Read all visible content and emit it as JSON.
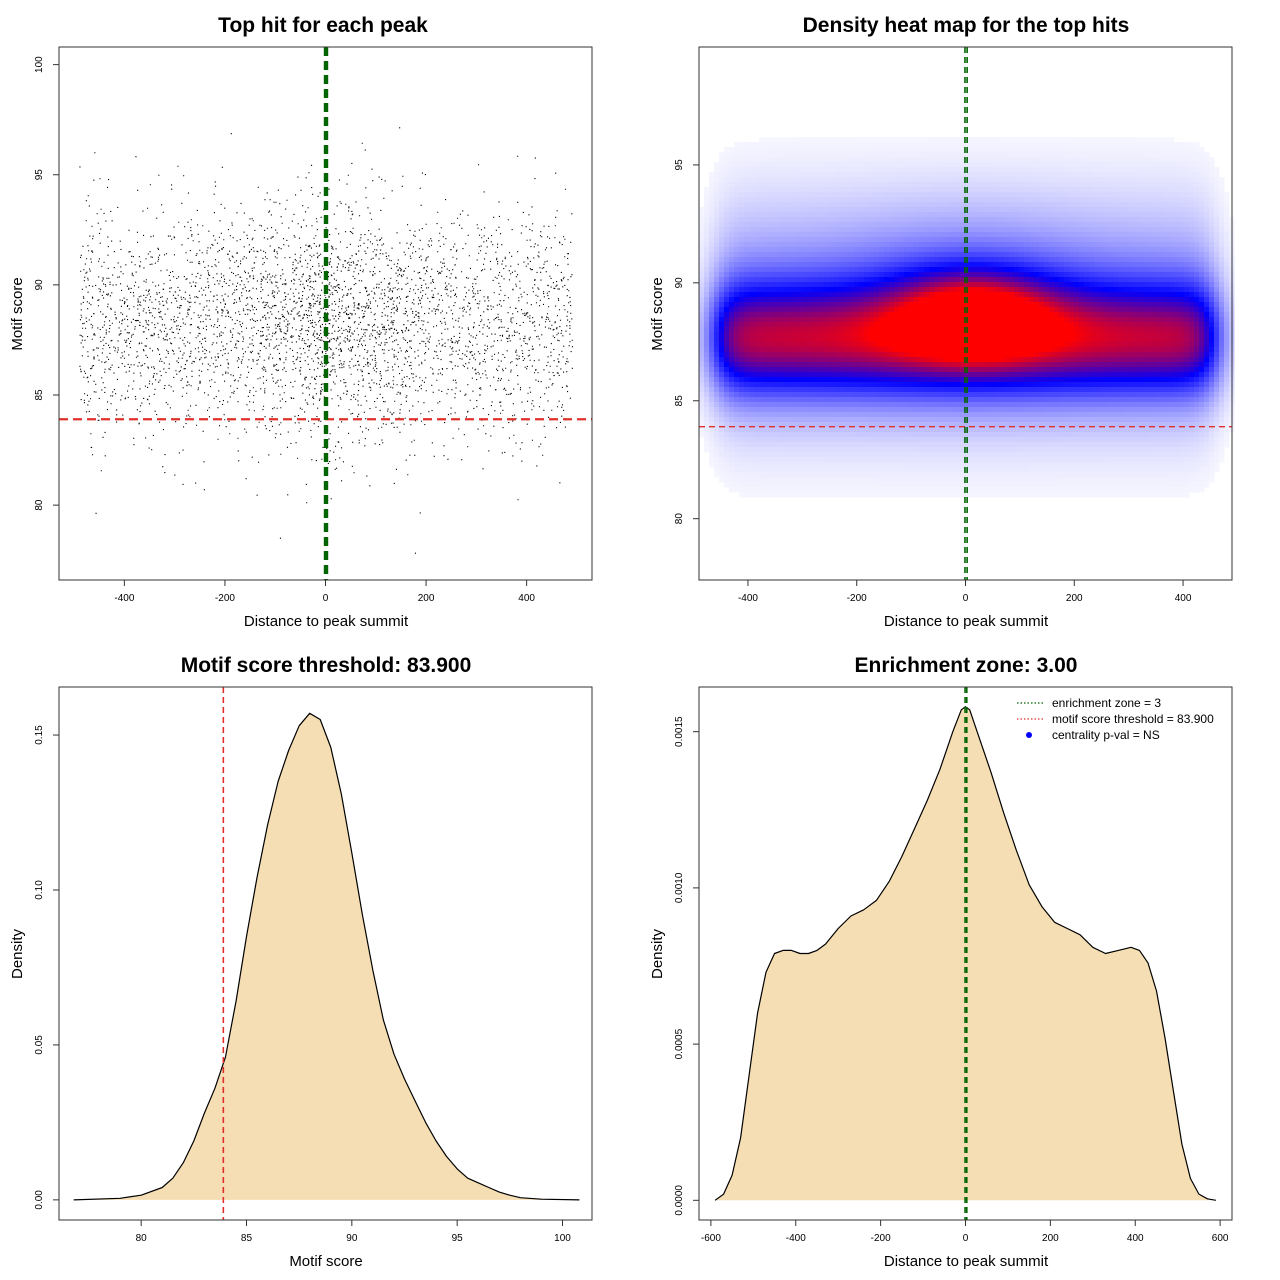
{
  "colors": {
    "fill": "#f5deb3",
    "threshold_line": "#e0302c",
    "zone_line": "#006400",
    "point": "#000000",
    "heat_low": "#ffffff",
    "heat_mid": "#0000ff",
    "heat_high": "#ff0000",
    "legend_dot": "#0000ff"
  },
  "chart_data": [
    {
      "type": "scatter",
      "title": "Top hit for each peak",
      "xlabel": "Distance to peak summit",
      "ylabel": "Motif score",
      "xlim": [
        -530,
        530
      ],
      "ylim": [
        76.6,
        100.8
      ],
      "xticks": [
        -400,
        -200,
        0,
        200,
        400
      ],
      "yticks": [
        80,
        85,
        90,
        95,
        100
      ],
      "x_range": [
        -490,
        490
      ],
      "y_center": 88.3,
      "y_sd": 2.6,
      "center_enrichment": true,
      "hlines": [
        {
          "y": 83.9,
          "role": "threshold"
        }
      ],
      "vlines": [
        {
          "x": -1,
          "role": "zone"
        },
        {
          "x": 3,
          "role": "zone"
        }
      ]
    },
    {
      "type": "heatmap",
      "title": "Density heat map for the top hits",
      "xlabel": "Distance to peak summit",
      "ylabel": "Motif score",
      "xlim": [
        -490,
        490
      ],
      "ylim": [
        77.4,
        100.0
      ],
      "xticks": [
        -400,
        -200,
        0,
        200,
        400
      ],
      "yticks": [
        80,
        85,
        90,
        95
      ],
      "peak": {
        "x": 15,
        "y": 88.6
      },
      "band_y": 87.6,
      "hlines": [
        {
          "y": 83.9,
          "role": "threshold"
        }
      ],
      "vlines": [
        {
          "x": -1,
          "role": "zone"
        },
        {
          "x": 3,
          "role": "zone"
        }
      ]
    },
    {
      "type": "area",
      "title": "Motif score threshold: 83.900",
      "xlabel": "Motif score",
      "ylabel": "Density",
      "xlim": [
        76.1,
        101.4
      ],
      "ylim": [
        -0.0065,
        0.1655
      ],
      "xticks": [
        80,
        85,
        90,
        95,
        100
      ],
      "yticks": [
        0.0,
        0.05,
        0.1,
        0.15
      ],
      "ytick_labels": [
        "0.00",
        "0.05",
        "0.10",
        "0.15"
      ],
      "x": [
        76.8,
        79,
        80,
        81,
        81.5,
        82,
        82.5,
        83,
        83.5,
        84,
        84.5,
        85,
        85.5,
        86,
        86.5,
        87,
        87.5,
        88,
        88.5,
        89,
        89.5,
        90,
        90.5,
        91,
        91.5,
        92,
        92.5,
        93,
        93.5,
        94,
        94.5,
        95,
        95.5,
        96,
        96.5,
        97,
        97.5,
        98,
        99,
        100.8
      ],
      "y": [
        0,
        0.0005,
        0.0015,
        0.004,
        0.007,
        0.012,
        0.019,
        0.028,
        0.036,
        0.046,
        0.064,
        0.085,
        0.104,
        0.121,
        0.135,
        0.145,
        0.153,
        0.157,
        0.155,
        0.146,
        0.131,
        0.112,
        0.092,
        0.074,
        0.058,
        0.047,
        0.039,
        0.032,
        0.025,
        0.019,
        0.014,
        0.01,
        0.007,
        0.0055,
        0.004,
        0.0025,
        0.0015,
        0.0007,
        0.0002,
        0
      ],
      "vlines": [
        {
          "x": 83.9,
          "role": "threshold"
        }
      ]
    },
    {
      "type": "area",
      "title": "Enrichment zone: 3.00",
      "xlabel": "Distance to peak summit",
      "ylabel": "Density",
      "xlim": [
        -628,
        628
      ],
      "ylim": [
        -6.3e-05,
        0.001643
      ],
      "xticks": [
        -600,
        -400,
        -200,
        0,
        200,
        400,
        600
      ],
      "yticks": [
        0.0,
        0.0005,
        0.001,
        0.0015
      ],
      "ytick_labels": [
        "0.0000",
        "0.0005",
        "0.0010",
        "0.0015"
      ],
      "x": [
        -590,
        -570,
        -550,
        -530,
        -510,
        -490,
        -470,
        -450,
        -430,
        -410,
        -390,
        -370,
        -350,
        -330,
        -300,
        -270,
        -240,
        -210,
        -180,
        -150,
        -120,
        -90,
        -60,
        -30,
        -10,
        0,
        10,
        30,
        60,
        90,
        120,
        150,
        180,
        210,
        240,
        270,
        300,
        330,
        360,
        390,
        410,
        430,
        450,
        470,
        490,
        510,
        530,
        550,
        570,
        590
      ],
      "y": [
        0,
        2e-05,
        8e-05,
        0.0002,
        0.0004,
        0.0006,
        0.00073,
        0.00079,
        0.0008,
        0.0008,
        0.00079,
        0.00079,
        0.0008,
        0.00082,
        0.00087,
        0.00091,
        0.00093,
        0.00096,
        0.00102,
        0.0011,
        0.00119,
        0.00128,
        0.00138,
        0.0015,
        0.00157,
        0.00158,
        0.00157,
        0.00149,
        0.00137,
        0.00124,
        0.00112,
        0.00101,
        0.00094,
        0.00089,
        0.00087,
        0.00085,
        0.00081,
        0.00079,
        0.0008,
        0.00081,
        0.0008,
        0.00076,
        0.00067,
        0.00052,
        0.00035,
        0.00018,
        7e-05,
        2e-05,
        5e-06,
        0
      ],
      "vlines": [
        {
          "x": -1,
          "role": "zone"
        },
        {
          "x": 3,
          "role": "zone"
        }
      ],
      "legend": {
        "position": "top-right",
        "entries": [
          {
            "label": "enrichment zone = 3",
            "style": "dotted-line",
            "color": "#006400"
          },
          {
            "label": "motif score threshold = 83.900",
            "style": "dotted-line",
            "color": "#e0302c"
          },
          {
            "label": "centrality p-val = NS",
            "style": "dot",
            "color": "#0000ff"
          }
        ]
      }
    }
  ]
}
